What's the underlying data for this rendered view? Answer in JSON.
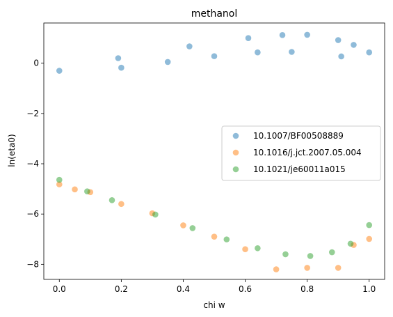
{
  "chart_data": {
    "type": "scatter",
    "title": "methanol",
    "xlabel": "chi w",
    "ylabel": "ln(eta0)",
    "xlim": [
      -0.05,
      1.05
    ],
    "ylim": [
      -8.6,
      1.6
    ],
    "xticks": [
      0.0,
      0.2,
      0.4,
      0.6,
      0.8,
      1.0
    ],
    "xtick_labels": [
      "0.0",
      "0.2",
      "0.4",
      "0.6",
      "0.8",
      "1.0"
    ],
    "yticks": [
      0,
      -2,
      -4,
      -6,
      -8
    ],
    "ytick_labels": [
      "0",
      "−2",
      "−4",
      "−6",
      "−8"
    ],
    "grid": false,
    "legend_position": "right",
    "series": [
      {
        "name": "10.1007/BF00508889",
        "color": "#1f77b4",
        "points": [
          {
            "x": 0.0,
            "y": -0.3
          },
          {
            "x": 0.19,
            "y": 0.2
          },
          {
            "x": 0.2,
            "y": -0.18
          },
          {
            "x": 0.35,
            "y": 0.05
          },
          {
            "x": 0.42,
            "y": 0.67
          },
          {
            "x": 0.5,
            "y": 0.28
          },
          {
            "x": 0.61,
            "y": 1.0
          },
          {
            "x": 0.64,
            "y": 0.43
          },
          {
            "x": 0.72,
            "y": 1.12
          },
          {
            "x": 0.75,
            "y": 0.45
          },
          {
            "x": 0.8,
            "y": 1.13
          },
          {
            "x": 0.9,
            "y": 0.92
          },
          {
            "x": 0.91,
            "y": 0.27
          },
          {
            "x": 0.95,
            "y": 0.73
          },
          {
            "x": 1.0,
            "y": 0.43
          }
        ]
      },
      {
        "name": "10.1016/j.jct.2007.05.004",
        "color": "#ff7f0e",
        "points": [
          {
            "x": 0.0,
            "y": -4.82
          },
          {
            "x": 0.05,
            "y": -5.02
          },
          {
            "x": 0.1,
            "y": -5.13
          },
          {
            "x": 0.2,
            "y": -5.6
          },
          {
            "x": 0.3,
            "y": -5.97
          },
          {
            "x": 0.4,
            "y": -6.45
          },
          {
            "x": 0.5,
            "y": -6.9
          },
          {
            "x": 0.6,
            "y": -7.4
          },
          {
            "x": 0.7,
            "y": -8.2
          },
          {
            "x": 0.8,
            "y": -8.14
          },
          {
            "x": 0.9,
            "y": -8.14
          },
          {
            "x": 0.95,
            "y": -7.23
          },
          {
            "x": 1.0,
            "y": -6.99
          }
        ]
      },
      {
        "name": "10.1021/je60011a015",
        "color": "#2ca02c",
        "points": [
          {
            "x": 0.0,
            "y": -4.64
          },
          {
            "x": 0.09,
            "y": -5.1
          },
          {
            "x": 0.17,
            "y": -5.45
          },
          {
            "x": 0.31,
            "y": -6.02
          },
          {
            "x": 0.43,
            "y": -6.56
          },
          {
            "x": 0.54,
            "y": -7.01
          },
          {
            "x": 0.64,
            "y": -7.36
          },
          {
            "x": 0.73,
            "y": -7.6
          },
          {
            "x": 0.81,
            "y": -7.67
          },
          {
            "x": 0.88,
            "y": -7.52
          },
          {
            "x": 0.94,
            "y": -7.18
          },
          {
            "x": 1.0,
            "y": -6.44
          }
        ]
      }
    ]
  }
}
